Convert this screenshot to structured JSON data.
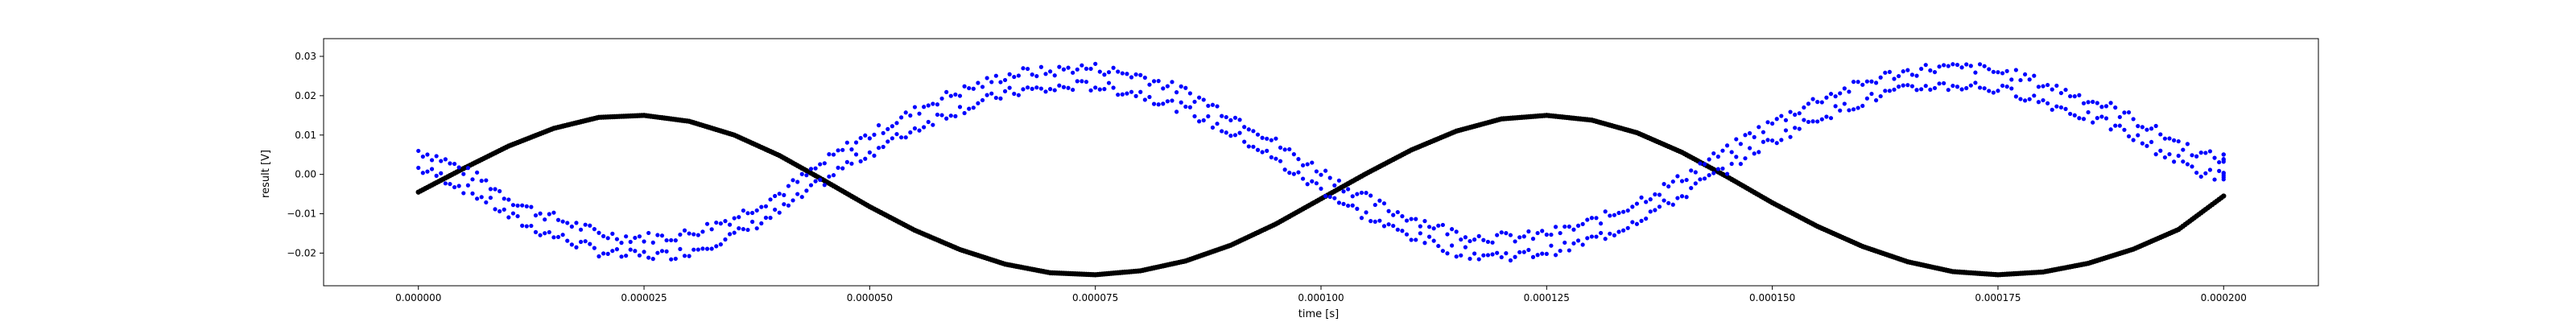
{
  "chart_data": {
    "type": "scatter",
    "title": "",
    "xlabel": "time [s]",
    "ylabel": "result [V]",
    "xlim": [
      -1.05e-05,
      0.0002105
    ],
    "ylim": [
      -0.0283,
      0.0345
    ],
    "xticks": [
      0.0,
      2.5e-05,
      5e-05,
      7.5e-05,
      0.0001,
      0.000125,
      0.00015,
      0.000175,
      0.0002
    ],
    "xtick_labels": [
      "0.000000",
      "0.000025",
      "0.000050",
      "0.000075",
      "0.000100",
      "0.000125",
      "0.000150",
      "0.000175",
      "0.000200"
    ],
    "yticks": [
      -0.02,
      -0.01,
      0.0,
      0.01,
      0.02,
      0.03
    ],
    "ytick_labels": [
      "−0.02",
      "−0.01",
      "0.00",
      "0.01",
      "0.02",
      "0.03"
    ],
    "grid": false,
    "legend": false,
    "series": [
      {
        "color": "#0000ff",
        "marker": "dot",
        "x": [
          0.0,
          2.5e-06,
          5e-06,
          7.5e-06,
          1e-05,
          1.25e-05,
          1.5e-05,
          1.75e-05,
          2e-05,
          2.25e-05,
          2.5e-05,
          2.75e-05,
          3e-05,
          3.25e-05,
          3.5e-05,
          3.75e-05,
          4e-05,
          4.25e-05,
          4.5e-05,
          4.75e-05,
          5e-05,
          5.25e-05,
          5.5e-05,
          5.75e-05,
          6e-05,
          6.25e-05,
          6.5e-05,
          6.75e-05,
          7e-05,
          7.25e-05,
          7.5e-05,
          7.75e-05,
          8e-05,
          8.25e-05,
          8.5e-05,
          8.75e-05,
          9e-05,
          9.25e-05,
          9.5e-05,
          9.75e-05,
          0.0001,
          0.0001025,
          0.000105,
          0.0001075,
          0.00011,
          0.0001125,
          0.000115,
          0.0001175,
          0.00012,
          0.0001225,
          0.000125,
          0.0001275,
          0.00013,
          0.0001325,
          0.000135,
          0.0001375,
          0.00014,
          0.0001425,
          0.000145,
          0.0001475,
          0.00015,
          0.0001525,
          0.000155,
          0.0001575,
          0.00016,
          0.0001625,
          0.000165,
          0.0001675,
          0.00017,
          0.0001725,
          0.000175,
          0.0001775,
          0.00018,
          0.0001825,
          0.000185,
          0.0001875,
          0.00019,
          0.0001925,
          0.000195,
          0.0001975,
          0.0002
        ],
        "y": [
          0.006,
          0.004,
          0.001,
          -0.002,
          -0.006,
          -0.009,
          -0.011,
          -0.013,
          -0.015,
          -0.016,
          -0.016,
          -0.016,
          -0.015,
          -0.013,
          -0.011,
          -0.008,
          -0.005,
          -0.001,
          0.003,
          0.007,
          0.01,
          0.013,
          0.016,
          0.019,
          0.021,
          0.023,
          0.025,
          0.026,
          0.026,
          0.027,
          0.027,
          0.026,
          0.025,
          0.023,
          0.021,
          0.018,
          0.015,
          0.012,
          0.008,
          0.004,
          0.001,
          -0.003,
          -0.006,
          -0.009,
          -0.011,
          -0.013,
          -0.015,
          -0.016,
          -0.016,
          -0.016,
          -0.015,
          -0.014,
          -0.012,
          -0.01,
          -0.007,
          -0.004,
          -0.001,
          0.003,
          0.006,
          0.01,
          0.013,
          0.016,
          0.019,
          0.021,
          0.023,
          0.025,
          0.026,
          0.027,
          0.027,
          0.027,
          0.026,
          0.025,
          0.023,
          0.021,
          0.019,
          0.017,
          0.014,
          0.011,
          0.008,
          0.005,
          0.004
        ]
      },
      {
        "color": "#000000",
        "marker": "dot",
        "x": [
          0.0,
          5e-06,
          1e-05,
          1.5e-05,
          2e-05,
          2.5e-05,
          3e-05,
          3.5e-05,
          4e-05,
          4.5e-05,
          5e-05,
          5.5e-05,
          6e-05,
          6.5e-05,
          7e-05,
          7.5e-05,
          8e-05,
          8.5e-05,
          9e-05,
          9.5e-05,
          0.0001,
          0.000105,
          0.00011,
          0.000115,
          0.00012,
          0.000125,
          0.00013,
          0.000135,
          0.00014,
          0.000145,
          0.00015,
          0.000155,
          0.00016,
          0.000165,
          0.00017,
          0.000175,
          0.00018,
          0.000185,
          0.00019,
          0.000195,
          0.0002
        ],
        "y": [
          -0.0045,
          0.0015,
          0.0072,
          0.0117,
          0.0145,
          0.015,
          0.0135,
          0.01,
          0.0048,
          -0.0016,
          -0.0082,
          -0.0142,
          -0.0191,
          -0.0228,
          -0.025,
          -0.0255,
          -0.0245,
          -0.022,
          -0.018,
          -0.0126,
          -0.0062,
          0.0002,
          0.0062,
          0.011,
          0.0141,
          0.015,
          0.0138,
          0.0106,
          0.0056,
          -0.0006,
          -0.0072,
          -0.0132,
          -0.0183,
          -0.0222,
          -0.0247,
          -0.0255,
          -0.0248,
          -0.0226,
          -0.019,
          -0.014,
          -0.0055
        ]
      }
    ]
  }
}
